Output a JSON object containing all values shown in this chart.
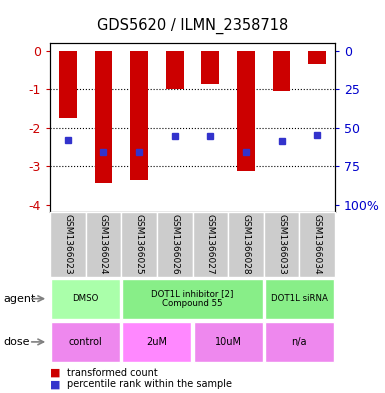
{
  "title": "GDS5620 / ILMN_2358718",
  "samples": [
    "GSM1366023",
    "GSM1366024",
    "GSM1366025",
    "GSM1366026",
    "GSM1366027",
    "GSM1366028",
    "GSM1366033",
    "GSM1366034"
  ],
  "red_values": [
    -1.75,
    -3.45,
    -3.35,
    -0.98,
    -0.87,
    -3.12,
    -1.05,
    -0.35
  ],
  "blue_values": [
    -2.32,
    -2.62,
    -2.62,
    -2.22,
    -2.22,
    -2.62,
    -2.35,
    -2.18
  ],
  "ylim": [
    -4.2,
    0.2
  ],
  "yticks": [
    0,
    -1,
    -2,
    -3,
    -4
  ],
  "right_ylim": [
    -105,
    5
  ],
  "bar_color": "#cc0000",
  "blue_color": "#3333cc",
  "legend_red": "transformed count",
  "legend_blue": "percentile rank within the sample",
  "agent_label": "agent",
  "dose_label": "dose",
  "tick_label_color_left": "#cc0000",
  "tick_label_color_right": "#0000cc",
  "sample_bg": "#cccccc",
  "agent_defs": [
    {
      "start": 0,
      "end": 2,
      "label": "DMSO",
      "color": "#aaffaa"
    },
    {
      "start": 2,
      "end": 6,
      "label": "DOT1L inhibitor [2]\nCompound 55",
      "color": "#88ee88"
    },
    {
      "start": 6,
      "end": 8,
      "label": "DOT1L siRNA",
      "color": "#88ee88"
    }
  ],
  "dose_defs": [
    {
      "start": 0,
      "end": 2,
      "label": "control",
      "color": "#ee88ee"
    },
    {
      "start": 2,
      "end": 4,
      "label": "2uM",
      "color": "#ff88ff"
    },
    {
      "start": 4,
      "end": 6,
      "label": "10uM",
      "color": "#ee88ee"
    },
    {
      "start": 6,
      "end": 8,
      "label": "n/a",
      "color": "#ee88ee"
    }
  ]
}
